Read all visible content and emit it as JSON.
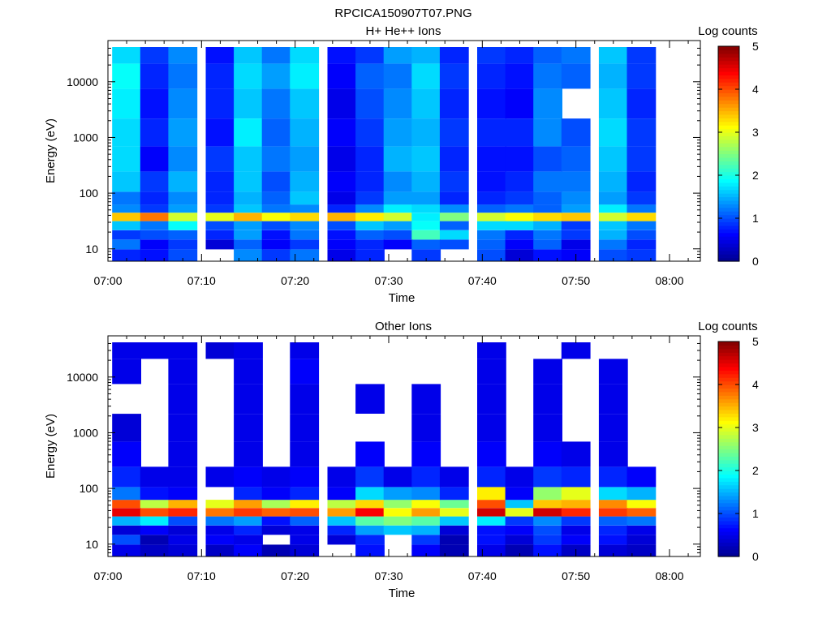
{
  "figure_title": "RPCICA150907T07.PNG",
  "colormap_stops": [
    "#00008f",
    "#0000ff",
    "#0080ff",
    "#00ffff",
    "#80ff80",
    "#ffff00",
    "#ff8000",
    "#ff0000",
    "#800000"
  ],
  "chart_data": [
    {
      "type": "heatmap",
      "title": "H+ He++ Ions",
      "xlabel": "Time",
      "ylabel": "Energy (eV)",
      "colorbar_label": "Log counts",
      "colorbar_ticks": [
        "0",
        "1",
        "2",
        "3",
        "4",
        "5"
      ],
      "color_range": [
        0,
        5
      ],
      "x_ticks": [
        "07:00",
        "07:10",
        "07:20",
        "07:30",
        "07:40",
        "07:50",
        "08:00"
      ],
      "x_range": [
        "07:00",
        "08:00"
      ],
      "y_scale": "log",
      "y_ticks": [
        "10",
        "100",
        "1000",
        "10000"
      ],
      "y_range": [
        6,
        42000
      ],
      "time_bins": [
        "07:02",
        "07:05",
        "07:08",
        "07:12",
        "07:15",
        "07:18",
        "07:21",
        "07:25",
        "07:28",
        "07:31",
        "07:34",
        "07:37",
        "07:41",
        "07:44",
        "07:47",
        "07:50",
        "07:54",
        "07:57"
      ],
      "energy_bands_eV": [
        8,
        12,
        18,
        26,
        38,
        52,
        75,
        150,
        400,
        1200,
        4000,
        14000,
        32000
      ],
      "values": [
        [
          0.8,
          1.2,
          0.9,
          1.6,
          3.4,
          1.3,
          1.2,
          1.6,
          1.7,
          1.7,
          1.8,
          1.9,
          1.7
        ],
        [
          0.7,
          0.6,
          1.0,
          1.2,
          3.8,
          0.9,
          0.8,
          0.9,
          0.6,
          0.8,
          0.7,
          0.8,
          0.9
        ],
        [
          1.0,
          0.9,
          1.1,
          1.9,
          2.9,
          1.4,
          1.3,
          1.5,
          1.3,
          1.4,
          1.3,
          1.2,
          1.3
        ],
        [
          null,
          0.4,
          0.8,
          1.0,
          3.0,
          0.9,
          0.8,
          0.8,
          0.9,
          0.7,
          0.8,
          0.8,
          0.7
        ],
        [
          1.3,
          1.1,
          1.4,
          1.4,
          3.5,
          1.6,
          1.5,
          1.6,
          1.6,
          1.8,
          1.6,
          1.7,
          1.6
        ],
        [
          0.9,
          0.6,
          0.7,
          1.0,
          3.1,
          1.2,
          1.1,
          1.0,
          1.2,
          1.1,
          1.2,
          1.4,
          1.2
        ],
        [
          1.2,
          0.9,
          1.2,
          1.3,
          3.3,
          1.3,
          1.6,
          1.5,
          1.4,
          1.5,
          1.6,
          1.8,
          1.7
        ],
        [
          0.5,
          0.6,
          0.7,
          1.0,
          3.5,
          0.8,
          0.5,
          0.6,
          0.5,
          0.6,
          0.5,
          0.6,
          0.7
        ],
        [
          0.8,
          0.8,
          1.1,
          1.6,
          3.2,
          1.3,
          0.9,
          0.8,
          0.8,
          0.9,
          1.0,
          1.1,
          0.9
        ],
        [
          null,
          0.6,
          1.0,
          1.4,
          2.9,
          1.8,
          1.4,
          1.3,
          1.5,
          1.4,
          1.3,
          1.2,
          1.4
        ],
        [
          0.9,
          1.1,
          2.2,
          1.9,
          1.8,
          1.7,
          1.4,
          1.5,
          1.6,
          1.5,
          1.6,
          1.7,
          1.5
        ],
        [
          null,
          1.0,
          1.7,
          1.1,
          2.5,
          1.3,
          0.8,
          0.9,
          0.8,
          0.9,
          0.8,
          0.9,
          0.8
        ],
        [
          1.0,
          1.1,
          1.2,
          1.7,
          2.9,
          1.1,
          0.8,
          0.7,
          0.7,
          0.8,
          0.7,
          0.8,
          0.9
        ],
        [
          0.4,
          0.6,
          0.8,
          1.7,
          3.1,
          1.2,
          0.9,
          0.8,
          0.7,
          0.8,
          0.6,
          0.7,
          0.8
        ],
        [
          0.7,
          1.1,
          1.2,
          1.5,
          3.3,
          1.1,
          1.1,
          1.2,
          1.0,
          1.3,
          1.3,
          1.2,
          1.1
        ],
        [
          0.6,
          0.5,
          0.9,
          0.9,
          3.4,
          1.4,
          1.3,
          1.2,
          1.1,
          1.0,
          null,
          1.1,
          1.2
        ],
        [
          1.0,
          1.2,
          1.5,
          1.6,
          2.9,
          1.8,
          1.4,
          1.5,
          1.6,
          1.7,
          1.6,
          1.5,
          1.6
        ],
        [
          0.9,
          0.8,
          1.0,
          1.2,
          3.3,
          1.2,
          0.9,
          0.8,
          0.9,
          0.9,
          0.8,
          0.9,
          0.9
        ]
      ]
    },
    {
      "type": "heatmap",
      "title": "Other Ions",
      "xlabel": "Time",
      "ylabel": "Energy (eV)",
      "colorbar_label": "Log counts",
      "colorbar_ticks": [
        "0",
        "1",
        "2",
        "3",
        "4",
        "5"
      ],
      "color_range": [
        0,
        5
      ],
      "x_ticks": [
        "07:00",
        "07:10",
        "07:20",
        "07:30",
        "07:40",
        "07:50",
        "08:00"
      ],
      "x_range": [
        "07:00",
        "08:00"
      ],
      "y_scale": "log",
      "y_ticks": [
        "10",
        "100",
        "1000",
        "10000"
      ],
      "y_range": [
        6,
        42000
      ],
      "time_bins": [
        "07:02",
        "07:05",
        "07:08",
        "07:12",
        "07:15",
        "07:18",
        "07:21",
        "07:25",
        "07:28",
        "07:31",
        "07:34",
        "07:37",
        "07:41",
        "07:44",
        "07:47",
        "07:50",
        "07:54",
        "07:57"
      ],
      "energy_bands_eV": [
        8,
        12,
        18,
        26,
        38,
        52,
        75,
        150,
        400,
        1200,
        4000,
        14000,
        32000
      ],
      "values": [
        [
          0.5,
          1.0,
          0.4,
          1.5,
          4.5,
          4.0,
          1.2,
          0.8,
          0.6,
          0.4,
          null,
          0.5,
          0.5
        ],
        [
          0.3,
          0.2,
          0.6,
          1.8,
          4.0,
          2.8,
          0.7,
          0.5,
          null,
          null,
          null,
          null,
          0.5
        ],
        [
          0.4,
          0.5,
          0.4,
          1.0,
          4.2,
          3.5,
          0.6,
          0.5,
          0.5,
          0.5,
          0.5,
          0.5,
          0.5
        ],
        [
          0.3,
          0.6,
          0.5,
          1.2,
          3.8,
          3.0,
          null,
          0.5,
          null,
          null,
          null,
          null,
          0.4
        ],
        [
          0.6,
          0.5,
          0.8,
          1.4,
          4.1,
          3.6,
          0.8,
          0.6,
          0.5,
          0.5,
          0.5,
          0.5,
          0.5
        ],
        [
          0.2,
          null,
          0.4,
          0.7,
          3.9,
          2.7,
          0.6,
          0.5,
          null,
          null,
          null,
          null,
          null
        ],
        [
          0.4,
          0.5,
          0.5,
          1.1,
          4.0,
          3.2,
          0.8,
          0.6,
          0.5,
          0.5,
          0.5,
          0.6,
          0.5
        ],
        [
          null,
          0.4,
          0.8,
          1.6,
          3.6,
          2.8,
          0.6,
          0.5,
          null,
          null,
          null,
          null,
          null
        ],
        [
          0.7,
          0.8,
          1.4,
          2.3,
          4.4,
          3.3,
          1.7,
          0.9,
          0.6,
          null,
          0.5,
          null,
          null
        ],
        [
          null,
          null,
          1.6,
          2.5,
          3.1,
          2.6,
          1.4,
          0.5,
          null,
          null,
          null,
          null,
          null
        ],
        [
          0.6,
          0.9,
          1.5,
          2.3,
          3.6,
          3.1,
          1.3,
          0.8,
          0.6,
          0.5,
          0.5,
          null,
          null
        ],
        [
          0.2,
          0.2,
          0.4,
          1.6,
          3.0,
          2.4,
          0.8,
          0.5,
          null,
          null,
          null,
          null,
          null
        ],
        [
          0.5,
          0.7,
          0.7,
          1.8,
          4.6,
          4.0,
          3.2,
          0.8,
          0.6,
          0.5,
          0.5,
          0.5,
          0.5
        ],
        [
          0.2,
          0.4,
          0.6,
          0.9,
          3.0,
          1.6,
          0.6,
          0.5,
          null,
          null,
          null,
          null,
          null
        ],
        [
          0.7,
          0.9,
          1.0,
          1.3,
          4.6,
          3.4,
          2.6,
          0.9,
          0.6,
          0.5,
          0.5,
          0.5,
          null
        ],
        [
          0.3,
          0.6,
          0.5,
          0.9,
          4.2,
          3.5,
          3.0,
          0.8,
          0.5,
          null,
          null,
          null,
          0.5
        ],
        [
          0.4,
          0.7,
          0.8,
          1.1,
          4.1,
          3.7,
          1.7,
          0.8,
          0.5,
          0.5,
          0.5,
          0.5,
          null
        ],
        [
          0.3,
          0.4,
          0.5,
          1.2,
          3.9,
          3.1,
          1.5,
          0.6,
          null,
          null,
          null,
          null,
          null
        ]
      ]
    }
  ]
}
